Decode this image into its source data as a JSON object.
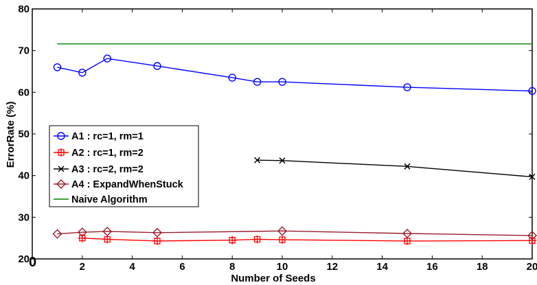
{
  "chart_data": {
    "type": "line",
    "title": "",
    "xlabel": "Number of Seeds",
    "ylabel": "ErrorRate  (%)",
    "xlim": [
      0,
      20
    ],
    "ylim": [
      20,
      80
    ],
    "x_ticks": [
      0,
      2,
      4,
      6,
      8,
      10,
      12,
      14,
      16,
      18,
      20
    ],
    "y_ticks": [
      20,
      30,
      40,
      50,
      60,
      70,
      80
    ],
    "x_tick_labels": [
      "0",
      "2",
      "4",
      "6",
      "8",
      "10",
      "12",
      "14",
      "16",
      "18",
      "20"
    ],
    "y_tick_labels": [
      "20",
      "30",
      "40",
      "50",
      "60",
      "70",
      "80"
    ],
    "corner_label": "0",
    "grid": false,
    "legend_position": "left",
    "series": [
      {
        "name": "A1  : rc=1, rm=1",
        "color": "#0000ff",
        "marker": "circle",
        "x": [
          1,
          2,
          3,
          5,
          8,
          9,
          10,
          15,
          20
        ],
        "y": [
          66.0,
          64.7,
          68.1,
          66.3,
          63.5,
          62.5,
          62.5,
          61.2,
          60.3
        ]
      },
      {
        "name": "A2  : rc=1, rm=2",
        "color": "#ff0000",
        "marker": "square-cross",
        "x": [
          2,
          3,
          5,
          8,
          9,
          10,
          15,
          20
        ],
        "y": [
          25.0,
          24.7,
          24.3,
          24.5,
          24.7,
          24.6,
          24.3,
          24.4
        ]
      },
      {
        "name": "A3  : rc=2, rm=2",
        "color": "#000000",
        "marker": "x",
        "x": [
          9,
          10,
          15,
          20
        ],
        "y": [
          43.7,
          43.6,
          42.2,
          39.7
        ]
      },
      {
        "name": "A4  : ExpandWhenStuck",
        "color": "#9b1c2e",
        "marker": "diamond",
        "x": [
          1,
          2,
          3,
          5,
          10,
          15,
          20
        ],
        "y": [
          26.0,
          26.4,
          26.6,
          26.3,
          26.7,
          26.1,
          25.6
        ]
      },
      {
        "name": "Naive Algorithm",
        "color": "#008000",
        "marker": "none",
        "x": [
          1,
          20
        ],
        "y": [
          71.6,
          71.6
        ]
      }
    ]
  }
}
